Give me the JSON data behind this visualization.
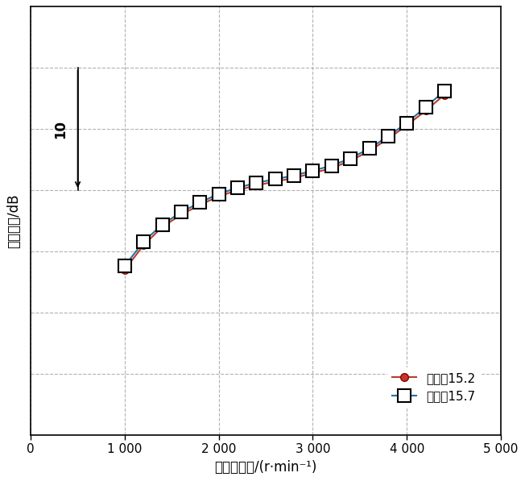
{
  "series1_label": "压缩比15.2",
  "series2_label": "压缩比15.7",
  "series1_color": "#c0392b",
  "series2_color": "#2471a3",
  "series1_x": [
    1000,
    1200,
    1400,
    1600,
    1800,
    2000,
    2200,
    2400,
    2600,
    2800,
    3000,
    3200,
    3400,
    3600,
    3800,
    4000,
    4200,
    4400
  ],
  "series1_y": [
    83.5,
    85.5,
    87.0,
    88.0,
    88.8,
    89.5,
    90.0,
    90.4,
    90.7,
    91.0,
    91.4,
    91.8,
    92.4,
    93.2,
    94.2,
    95.3,
    96.5,
    97.8
  ],
  "series2_x": [
    1000,
    1200,
    1400,
    1600,
    1800,
    2000,
    2200,
    2400,
    2600,
    2800,
    3000,
    3200,
    3400,
    3600,
    3800,
    4000,
    4200,
    4400
  ],
  "series2_y": [
    83.8,
    85.8,
    87.2,
    88.2,
    89.0,
    89.7,
    90.2,
    90.6,
    90.9,
    91.2,
    91.6,
    92.0,
    92.6,
    93.4,
    94.4,
    95.5,
    96.8,
    98.1
  ],
  "xlabel": "发动机转速/(r·min⁻¹)",
  "ylabel": "燃烧噪声/dB",
  "xlim": [
    0,
    5000
  ],
  "ylim": [
    70,
    105
  ],
  "xticks": [
    0,
    1000,
    2000,
    3000,
    4000,
    5000
  ],
  "xtick_labels": [
    "0",
    "1 000",
    "2 000",
    "3 000",
    "4 000",
    "5 000"
  ],
  "yticks": [
    75,
    80,
    85,
    90,
    95,
    100
  ],
  "grid_color": "#aaaaaa",
  "scale_bar_label": "10",
  "background_color": "#ffffff",
  "border_color": "#000000",
  "figsize": [
    6.52,
    5.97
  ],
  "dpi": 100
}
